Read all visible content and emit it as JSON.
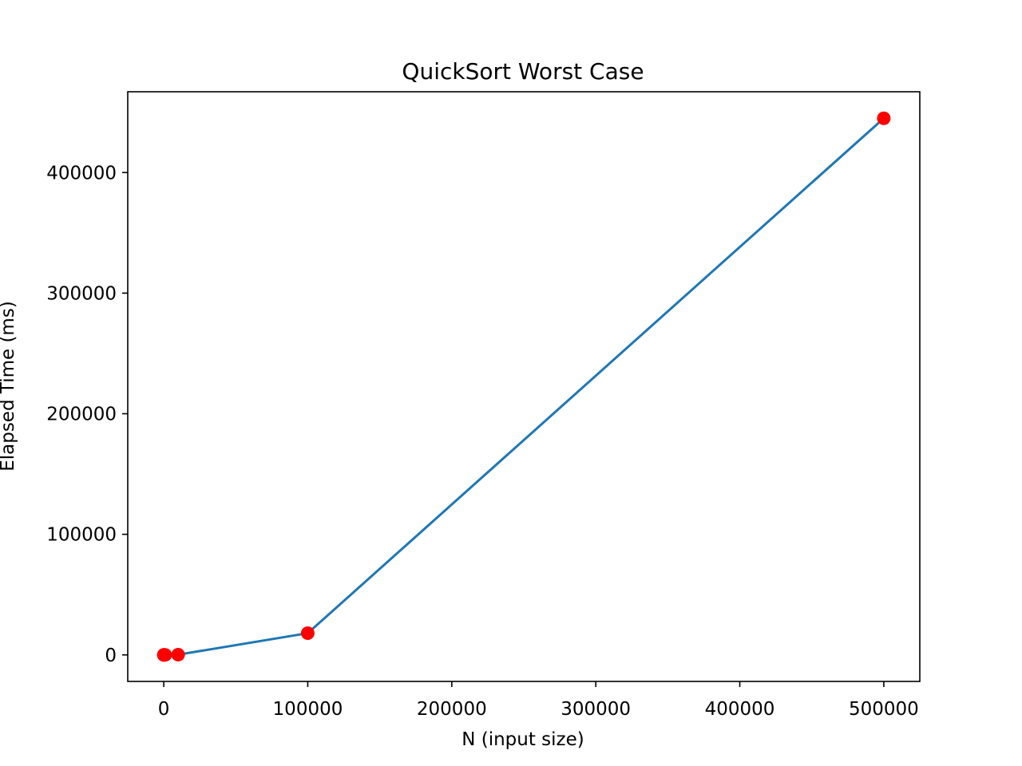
{
  "chart_data": {
    "type": "line",
    "title": "QuickSort Worst Case",
    "xlabel": "N (input size)",
    "ylabel": "Elapsed Time (ms)",
    "xlim": [
      -25000,
      525000
    ],
    "ylim": [
      -22000,
      467000
    ],
    "xticks": [
      0,
      100000,
      200000,
      300000,
      400000,
      500000
    ],
    "yticks": [
      0,
      100000,
      200000,
      300000,
      400000
    ],
    "grid": false,
    "series": [
      {
        "x": [
          10,
          100,
          1000,
          10000,
          100000,
          500000
        ],
        "y": [
          0,
          0,
          30,
          200,
          18000,
          445000
        ],
        "line_color": "#1f77b4",
        "marker_color": "#ff0000"
      }
    ]
  }
}
